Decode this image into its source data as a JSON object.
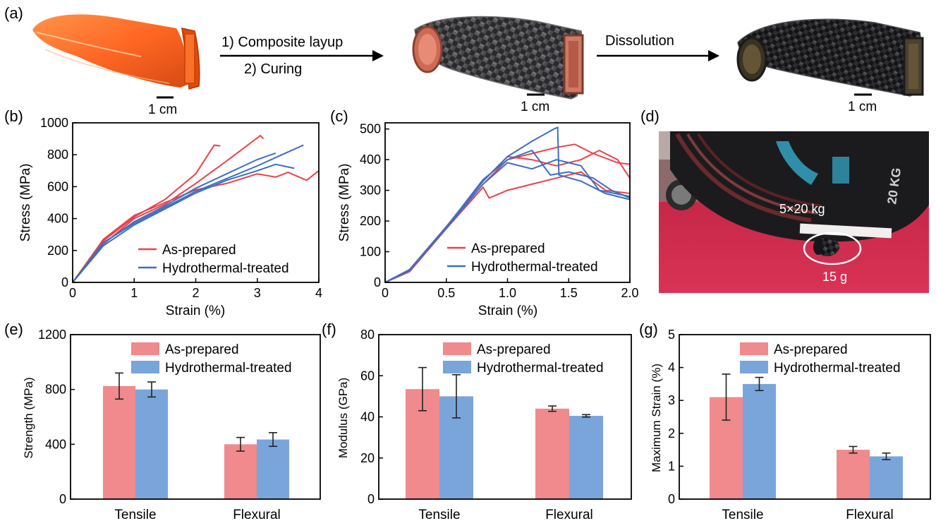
{
  "panel_labels": {
    "a": "(a)",
    "b": "(b)",
    "c": "(c)",
    "d": "(d)",
    "e": "(e)",
    "f": "(f)",
    "g": "(g)"
  },
  "process": {
    "step1": "1) Composite layup",
    "step2": "2) Curing",
    "step3": "Dissolution",
    "scale_bar": "1 cm"
  },
  "photo_d": {
    "weight_label": "5×20 kg",
    "mass_label": "15 g",
    "plate_marking": "20 KG"
  },
  "colors": {
    "as_prepared": "#e8434a",
    "hydrothermal": "#3b6fc4",
    "bar_as": "#f08a8c",
    "bar_hydro": "#7aa5da"
  },
  "chart_data": [
    {
      "id": "b",
      "type": "line",
      "xlabel": "Strain (%)",
      "ylabel": "Stress (MPa)",
      "xlim": [
        0,
        4
      ],
      "ylim": [
        0,
        1000
      ],
      "xticks": [
        0,
        1,
        2,
        3,
        4
      ],
      "yticks": [
        0,
        200,
        400,
        600,
        800,
        1000
      ],
      "legend": [
        "As-prepared",
        "Hydrothermal-treated"
      ],
      "legend_position": "bottom-center",
      "series": [
        {
          "group": "As-prepared",
          "points": [
            [
              0,
              0
            ],
            [
              0.5,
              260
            ],
            [
              1,
              410
            ],
            [
              1.5,
              520
            ],
            [
              2,
              680
            ],
            [
              2.3,
              860
            ],
            [
              2.4,
              855
            ]
          ]
        },
        {
          "group": "As-prepared",
          "points": [
            [
              0,
              0
            ],
            [
              0.5,
              240
            ],
            [
              1,
              400
            ],
            [
              1.5,
              490
            ],
            [
              2,
              620
            ],
            [
              2.5,
              760
            ],
            [
              3.05,
              920
            ],
            [
              3.1,
              900
            ]
          ]
        },
        {
          "group": "As-prepared",
          "points": [
            [
              0,
              0
            ],
            [
              0.5,
              270
            ],
            [
              1,
              420
            ],
            [
              1.5,
              500
            ],
            [
              2,
              580
            ],
            [
              2.5,
              620
            ],
            [
              3,
              680
            ],
            [
              3.3,
              660
            ],
            [
              3.5,
              690
            ],
            [
              3.8,
              640
            ],
            [
              4,
              700
            ]
          ]
        },
        {
          "group": "Hydrothermal-treated",
          "points": [
            [
              0,
              0
            ],
            [
              0.5,
              250
            ],
            [
              1,
              370
            ],
            [
              1.5,
              470
            ],
            [
              2,
              570
            ],
            [
              2.5,
              650
            ],
            [
              3,
              730
            ],
            [
              3.4,
              800
            ],
            [
              3.75,
              860
            ]
          ]
        },
        {
          "group": "Hydrothermal-treated",
          "points": [
            [
              0,
              0
            ],
            [
              0.5,
              230
            ],
            [
              1,
              360
            ],
            [
              1.5,
              460
            ],
            [
              2,
              560
            ],
            [
              2.5,
              640
            ],
            [
              3,
              700
            ],
            [
              3.3,
              740
            ],
            [
              3.6,
              715
            ]
          ]
        },
        {
          "group": "Hydrothermal-treated",
          "points": [
            [
              0,
              0
            ],
            [
              0.5,
              245
            ],
            [
              1,
              380
            ],
            [
              1.5,
              480
            ],
            [
              2,
              590
            ],
            [
              2.5,
              680
            ],
            [
              3,
              770
            ],
            [
              3.3,
              810
            ]
          ]
        }
      ]
    },
    {
      "id": "c",
      "type": "line",
      "xlabel": "Strain (%)",
      "ylabel": "Stress (MPa)",
      "xlim": [
        0,
        2.0
      ],
      "ylim": [
        0,
        520
      ],
      "xticks": [
        0,
        0.5,
        1.0,
        1.5,
        2.0
      ],
      "yticks": [
        0,
        100,
        200,
        300,
        400,
        500
      ],
      "legend": [
        "As-prepared",
        "Hydrothermal-treated"
      ],
      "legend_position": "bottom-right",
      "series": [
        {
          "group": "As-prepared",
          "points": [
            [
              0,
              0
            ],
            [
              0.2,
              40
            ],
            [
              0.5,
              180
            ],
            [
              0.8,
              320
            ],
            [
              1.0,
              400
            ],
            [
              1.2,
              420
            ],
            [
              1.4,
              440
            ],
            [
              1.55,
              450
            ],
            [
              1.7,
              420
            ],
            [
              1.9,
              390
            ],
            [
              2.0,
              385
            ]
          ]
        },
        {
          "group": "As-prepared",
          "points": [
            [
              0,
              0
            ],
            [
              0.2,
              35
            ],
            [
              0.5,
              175
            ],
            [
              0.8,
              310
            ],
            [
              0.85,
              275
            ],
            [
              1.0,
              300
            ],
            [
              1.2,
              320
            ],
            [
              1.4,
              340
            ],
            [
              1.6,
              360
            ],
            [
              1.8,
              300
            ],
            [
              2.0,
              290
            ]
          ]
        },
        {
          "group": "As-prepared",
          "points": [
            [
              0,
              0
            ],
            [
              0.2,
              42
            ],
            [
              0.5,
              182
            ],
            [
              0.8,
              330
            ],
            [
              1.0,
              410
            ],
            [
              1.2,
              400
            ],
            [
              1.4,
              380
            ],
            [
              1.6,
              400
            ],
            [
              1.75,
              430
            ],
            [
              1.9,
              400
            ],
            [
              2.0,
              340
            ]
          ]
        },
        {
          "group": "Hydrothermal-treated",
          "points": [
            [
              0,
              0
            ],
            [
              0.2,
              40
            ],
            [
              0.5,
              180
            ],
            [
              0.8,
              330
            ],
            [
              1.0,
              410
            ],
            [
              1.2,
              460
            ],
            [
              1.38,
              500
            ],
            [
              1.41,
              505
            ],
            [
              1.42,
              350
            ],
            [
              1.6,
              330
            ],
            [
              1.8,
              290
            ],
            [
              2.0,
              270
            ]
          ]
        },
        {
          "group": "Hydrothermal-treated",
          "points": [
            [
              0,
              0
            ],
            [
              0.2,
              38
            ],
            [
              0.5,
              176
            ],
            [
              0.8,
              320
            ],
            [
              1.0,
              390
            ],
            [
              1.2,
              370
            ],
            [
              1.4,
              400
            ],
            [
              1.6,
              380
            ],
            [
              1.75,
              300
            ],
            [
              2.0,
              280
            ]
          ]
        },
        {
          "group": "Hydrothermal-treated",
          "points": [
            [
              0,
              0
            ],
            [
              0.2,
              41
            ],
            [
              0.5,
              180
            ],
            [
              0.8,
              335
            ],
            [
              1.0,
              400
            ],
            [
              1.2,
              430
            ],
            [
              1.35,
              350
            ],
            [
              1.5,
              360
            ],
            [
              1.7,
              340
            ],
            [
              1.85,
              300
            ],
            [
              2.0,
              275
            ]
          ]
        }
      ]
    },
    {
      "id": "e",
      "type": "bar",
      "ylabel": "Strength (MPa)",
      "ylim": [
        0,
        1200
      ],
      "yticks": [
        0,
        400,
        800,
        1200
      ],
      "categories": [
        "Tensile",
        "Flexural"
      ],
      "legend_position": "top-center",
      "series": [
        {
          "name": "As-prepared",
          "values": [
            825,
            400
          ],
          "errors": [
            95,
            50
          ]
        },
        {
          "name": "Hydrothermal-treated",
          "values": [
            800,
            435
          ],
          "errors": [
            55,
            50
          ]
        }
      ]
    },
    {
      "id": "f",
      "type": "bar",
      "ylabel": "Modulus (GPa)",
      "ylim": [
        0,
        80
      ],
      "yticks": [
        0,
        20,
        40,
        60,
        80
      ],
      "categories": [
        "Tensile",
        "Flexural"
      ],
      "legend_position": "top-center",
      "series": [
        {
          "name": "As-prepared",
          "values": [
            53.5,
            44
          ],
          "errors": [
            10.5,
            1.3
          ]
        },
        {
          "name": "Hydrothermal-treated",
          "values": [
            50,
            40.5
          ],
          "errors": [
            10.5,
            0.6
          ]
        }
      ]
    },
    {
      "id": "g",
      "type": "bar",
      "ylabel": "Maximum Strain (%)",
      "ylim": [
        0,
        5
      ],
      "yticks": [
        0,
        1,
        2,
        3,
        4,
        5
      ],
      "categories": [
        "Tensile",
        "Flexural"
      ],
      "legend_position": "top-center",
      "series": [
        {
          "name": "As-prepared",
          "values": [
            3.1,
            1.5
          ],
          "errors": [
            0.7,
            0.1
          ]
        },
        {
          "name": "Hydrothermal-treated",
          "values": [
            3.5,
            1.3
          ],
          "errors": [
            0.2,
            0.1
          ]
        }
      ]
    }
  ]
}
